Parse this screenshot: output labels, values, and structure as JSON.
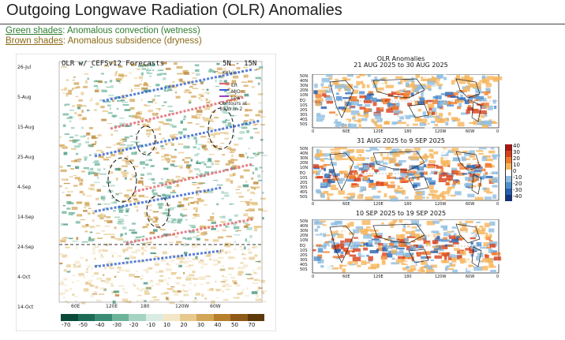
{
  "page": {
    "title": "Outgoing Longwave Radiation (OLR) Anomalies",
    "legend_green_key": "Green shades",
    "legend_green_text": ": Anomalous convection (wetness)",
    "legend_brown_key": "Brown shades",
    "legend_brown_text": ": Anomalous subsidence (dryness)"
  },
  "hovmoller": {
    "title": "OLR w/ CEFSv12 Forecasts",
    "band": "5N - 15N",
    "key_title": "Kelvin",
    "key_items": [
      "ER",
      "MJO",
      "Low"
    ],
    "contour_note": "Contours at",
    "contour_note2": "10 W m-2",
    "colors": {
      "er": "#e0606a",
      "mjo": "#3060d0",
      "kelvin": "#c04020",
      "low": "#a040c0"
    },
    "x_ticks": [
      "60E",
      "120E",
      "180",
      "120W",
      "60W"
    ],
    "y_ticks": [
      "26-Jul",
      "5-Aug",
      "15-Aug",
      "25-Aug",
      "4-Sep",
      "14-Sep",
      "24-Sep",
      "4-Oct",
      "14-Oct"
    ],
    "colorbar_labels": [
      "-70",
      "-50",
      "-40",
      "-30",
      "-20",
      "-10",
      "10",
      "20",
      "30",
      "40",
      "50",
      "70"
    ],
    "colorbar_colors": [
      "#0b4a3a",
      "#1d6b57",
      "#3a8c74",
      "#6cb39a",
      "#a6d4c3",
      "#d9ece4",
      "#f3e7c9",
      "#e7c98e",
      "#d3a557",
      "#b77e2c",
      "#8f5a17",
      "#5e3a0a"
    ]
  },
  "panels": {
    "header": "OLR Anomalies",
    "periods": [
      "21 AUG 2025 to 30 AUG 2025",
      "31 AUG 2025 to 9 SEP 2025",
      "10 SEP 2025 to 19 SEP 2025"
    ],
    "lat_labels": [
      "50N",
      "40N",
      "30N",
      "20N",
      "10N",
      "EQ",
      "10S",
      "20S",
      "30S",
      "40S",
      "50S"
    ],
    "lon_labels": [
      "0",
      "60E",
      "120E",
      "180",
      "120W",
      "60W",
      "0"
    ],
    "colorbar": {
      "labels": [
        "40",
        "30",
        "20",
        "10",
        "0",
        "-10",
        "-20",
        "-30",
        "-40"
      ],
      "colors": [
        "#b0150f",
        "#d8401a",
        "#ef7a2a",
        "#f6b45a",
        "#ffffff",
        "#8fbde0",
        "#4e8fd0",
        "#2460b0",
        "#0e3480"
      ]
    }
  }
}
